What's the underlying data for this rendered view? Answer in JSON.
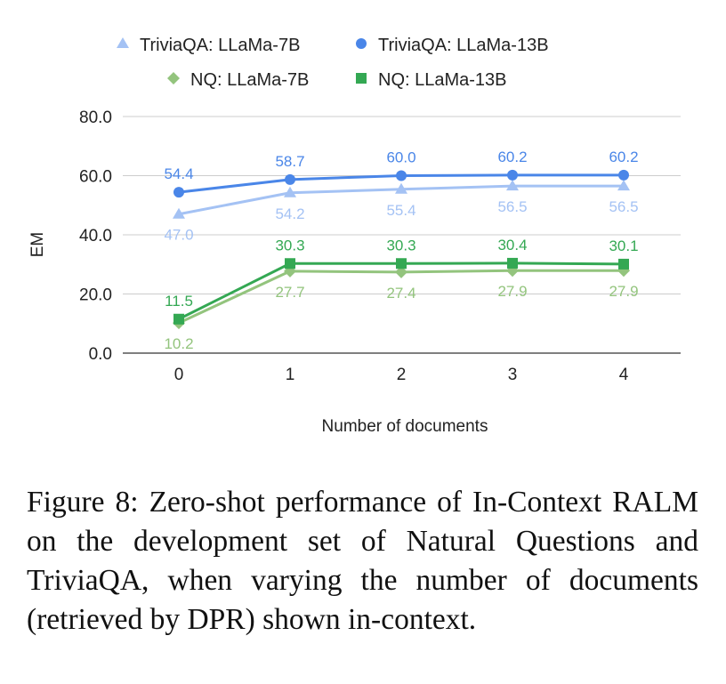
{
  "chart_data": {
    "type": "line",
    "x": [
      0,
      1,
      2,
      3,
      4
    ],
    "xticks": [
      "0",
      "1",
      "2",
      "3",
      "4"
    ],
    "xlabel": "Number of documents",
    "ylabel": "EM",
    "ylim": [
      0,
      80
    ],
    "yticks": [
      "0.0",
      "20.0",
      "40.0",
      "60.0",
      "80.0"
    ],
    "grid": true,
    "legend_position": "top",
    "series": [
      {
        "name": "TriviaQA: LLaMa-7B",
        "values": [
          47.0,
          54.2,
          55.4,
          56.5,
          56.5
        ],
        "labels": [
          "47.0",
          "54.2",
          "55.4",
          "56.5",
          "56.5"
        ],
        "marker": "triangle",
        "color": "#a4c2f4",
        "label_side": "below"
      },
      {
        "name": "TriviaQA: LLaMa-13B",
        "values": [
          54.4,
          58.7,
          60.0,
          60.2,
          60.2
        ],
        "labels": [
          "54.4",
          "58.7",
          "60.0",
          "60.2",
          "60.2"
        ],
        "marker": "circle",
        "color": "#4a86e8",
        "label_side": "above"
      },
      {
        "name": "NQ: LLaMa-7B",
        "values": [
          10.2,
          27.7,
          27.4,
          27.9,
          27.9
        ],
        "labels": [
          "10.2",
          "27.7",
          "27.4",
          "27.9",
          "27.9"
        ],
        "marker": "diamond",
        "color": "#93c47d",
        "label_side": "below"
      },
      {
        "name": "NQ: LLaMa-13B",
        "values": [
          11.5,
          30.3,
          30.3,
          30.4,
          30.1
        ],
        "labels": [
          "11.5",
          "30.3",
          "30.3",
          "30.4",
          "30.1"
        ],
        "marker": "square",
        "color": "#34a853",
        "label_side": "above"
      }
    ]
  },
  "caption": "Figure 8: Zero-shot performance of In-Context RALM on the development set of Natural Questions and TriviaQA, when varying the number of documents (retrieved by DPR) shown in-context."
}
